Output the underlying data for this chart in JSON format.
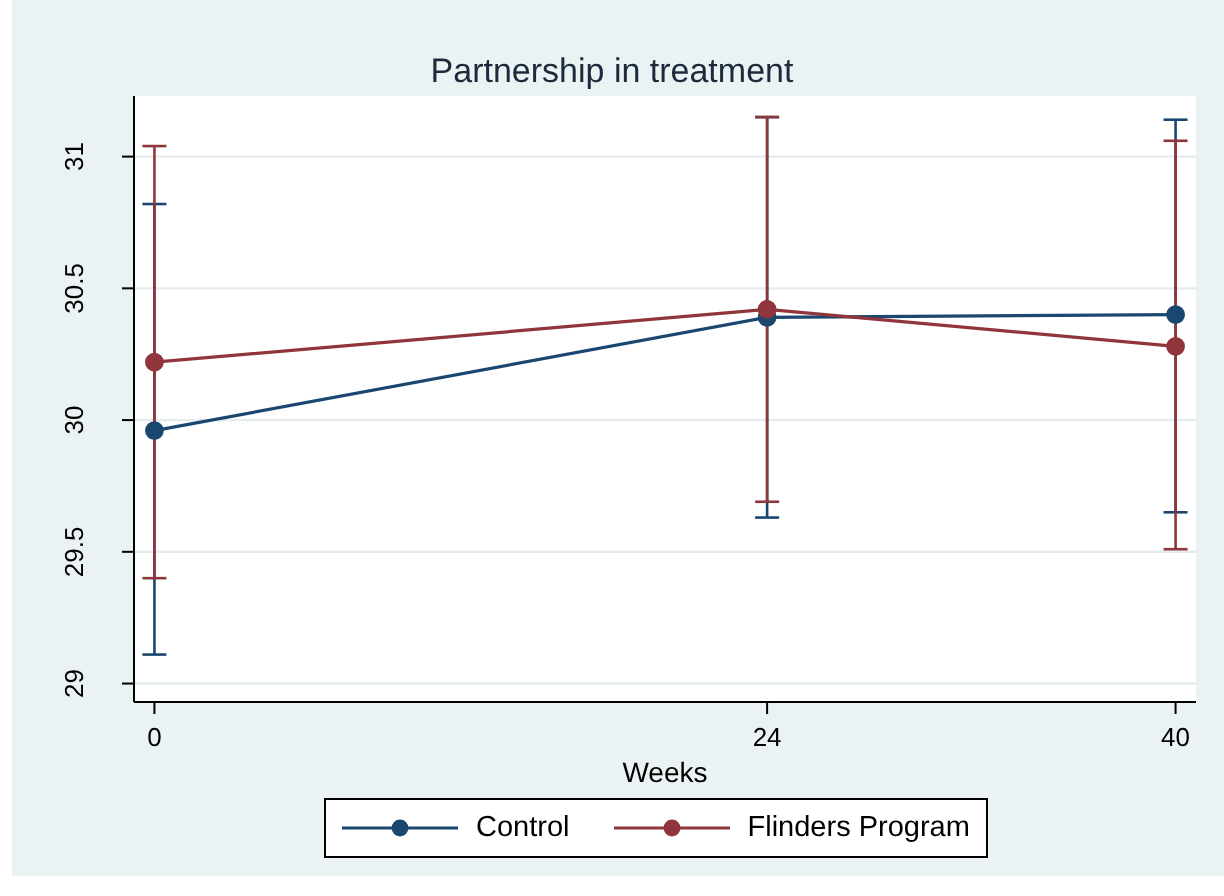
{
  "chart_data": {
    "type": "line",
    "title": "Partnership in treatment",
    "xlabel": "Weeks",
    "x": [
      0,
      24,
      40
    ],
    "xlim": [
      -0.8,
      40.8
    ],
    "xticks": [
      0,
      24,
      40
    ],
    "ylim": [
      28.93,
      31.23
    ],
    "yticks": [
      29,
      29.5,
      30,
      30.5,
      31
    ],
    "grid": "y",
    "legend": "bottom",
    "marker": "circle",
    "line_style": "solid",
    "series": [
      {
        "name": "Control",
        "color": "#1a476f",
        "values": [
          29.96,
          30.39,
          30.4
        ],
        "errors": [
          [
            29.11,
            30.82
          ],
          [
            29.63,
            31.15
          ],
          [
            29.65,
            31.14
          ]
        ]
      },
      {
        "name": "Flinders Program",
        "color": "#90353b",
        "values": [
          30.22,
          30.42,
          30.28
        ],
        "errors": [
          [
            29.4,
            31.04
          ],
          [
            29.69,
            31.15
          ],
          [
            29.51,
            31.06
          ]
        ]
      }
    ]
  }
}
